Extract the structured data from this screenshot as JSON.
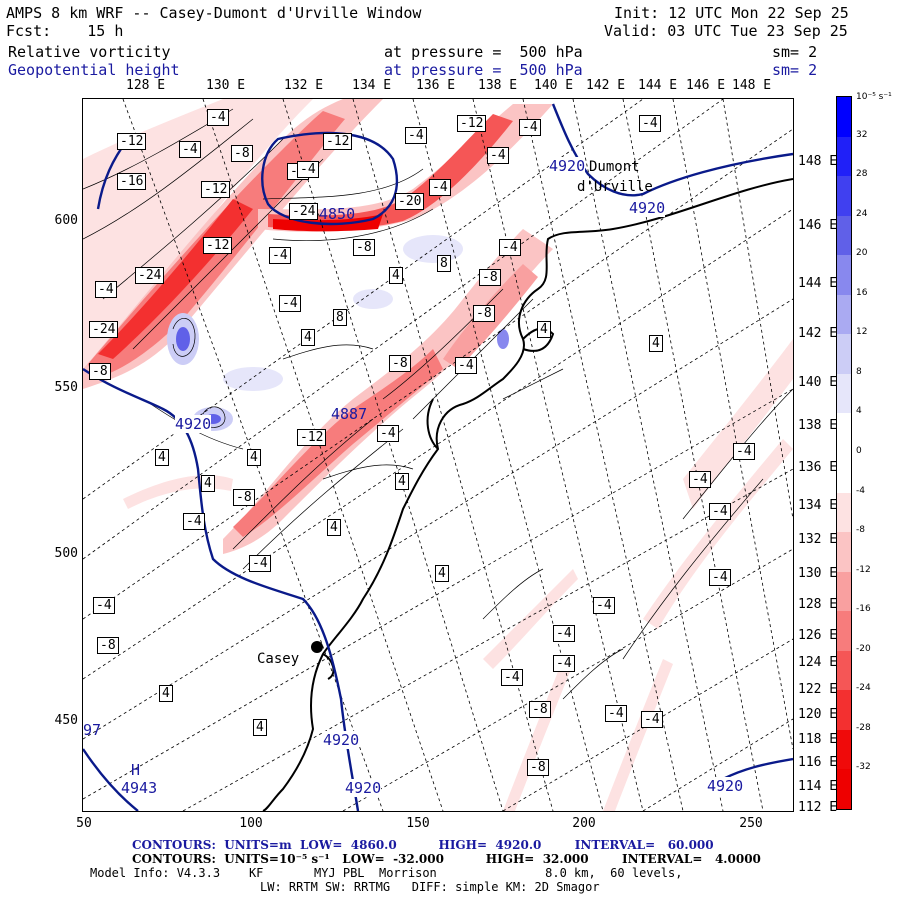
{
  "header": {
    "title": "AMPS 8 km WRF -- Casey-Dumont d'Urville Window",
    "fcst": "Fcst:    15 h",
    "init": "Init: 12 UTC Mon 22 Sep 25",
    "valid": "Valid: 03 UTC Tue 23 Sep 25",
    "field1_name": "Relative vorticity",
    "field1_level": "at pressure =  500 hPa",
    "field1_sm": "sm= 2",
    "field2_name": "Geopotential height",
    "field2_level": "at pressure =  500 hPa",
    "field2_sm": "sm= 2"
  },
  "axes": {
    "top_lon_labels": [
      "128 E",
      "130 E",
      "132 E",
      "134 E",
      "136 E",
      "138 E",
      "140 E",
      "142 E",
      "144 E",
      "146 E",
      "148 E"
    ],
    "y_ticks": [
      "600",
      "550",
      "500",
      "450"
    ],
    "x_ticks": [
      "50",
      "100",
      "150",
      "200",
      "250"
    ],
    "right_lat_labels": [
      "148 E",
      "146 E",
      "144 E",
      "142 E",
      "140 E",
      "138 E",
      "136 E",
      "134 E",
      "132 E",
      "130 E",
      "128 E",
      "126 E",
      "124 E",
      "122 E",
      "120 E",
      "118 E",
      "116 E",
      "114 E",
      "112 E"
    ]
  },
  "colorbar": {
    "unit": "10⁻⁵ s⁻¹",
    "ticks": [
      "32",
      "28",
      "24",
      "20",
      "16",
      "12",
      "8",
      "4",
      "0",
      "-4",
      "-8",
      "-12",
      "-16",
      "-20",
      "-24",
      "-28",
      "-32"
    ],
    "colors": [
      "#0000ff",
      "#2020f8",
      "#4040f0",
      "#6060e8",
      "#8888ee",
      "#aaaaf2",
      "#cccdf6",
      "#e6e6fa",
      "#ffffff",
      "#ffffff",
      "#fde2e2",
      "#fbc4c4",
      "#f9a0a0",
      "#f77c7c",
      "#f55656",
      "#f33030",
      "#f00a0a",
      "#ee0000"
    ]
  },
  "places": {
    "dumont": "Dumont",
    "durville": "d'Urville",
    "casey": "Casey",
    "high_marker": "H"
  },
  "height_labels": {
    "h4920_a": "4920",
    "h4920_b": "4920",
    "h4920_c": "4920",
    "h4920_d": "4920",
    "h4920_e": "4920",
    "h4920_f": "4920",
    "h4850": "4850",
    "h4887": "4887",
    "h4943": "4943",
    "h97": "97"
  },
  "vort_labels": [
    "-4",
    "-8",
    "-12",
    "-16",
    "-24",
    "4",
    "8",
    "-20"
  ],
  "footer": {
    "line1a": "CONTOURS:  UNITS=m  LOW=  4860.0          HIGH=  4920.0        INTERVAL=   60.000",
    "line2a": "CONTOURS:  UNITS=10⁻⁵ s⁻¹   LOW=  -32.000          HIGH=  32.000        INTERVAL=   4.0000",
    "line3": "Model Info: V4.3.3    KF       MYJ PBL  Morrison               8.0 km,  60 levels,",
    "line4": "LW: RRTM SW: RRTMG   DIFF: simple KM: 2D Smagor"
  }
}
